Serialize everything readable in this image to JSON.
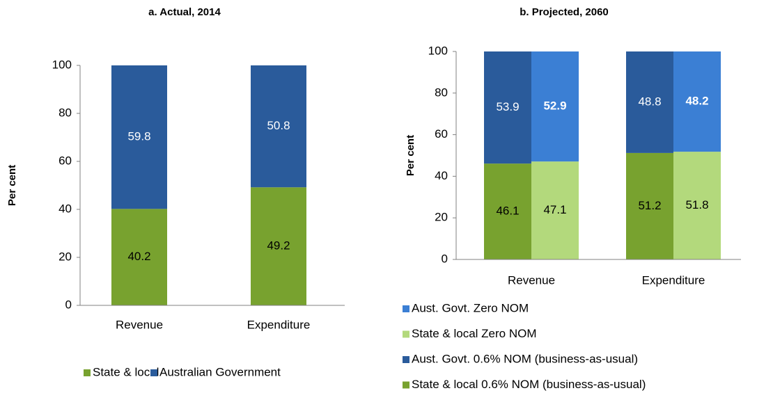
{
  "chart_data": [
    {
      "type": "stacked_bar",
      "title": "a. Actual, 2014",
      "y_label": "Per cent",
      "categories": [
        "Revenue",
        "Expenditure"
      ],
      "series": [
        {
          "name": "State & local",
          "color": "#78a22f",
          "label_color": "#000000",
          "stack": 0,
          "values": [
            40.2,
            49.2
          ]
        },
        {
          "name": "Australian Government",
          "color": "#2a5b9b",
          "label_color": "#ffffff",
          "stack": 0,
          "values": [
            59.8,
            50.8
          ]
        }
      ],
      "ylim": [
        0,
        100
      ],
      "yticks": [
        0,
        20,
        40,
        60,
        80,
        100
      ],
      "legend": "bottom-horizontal"
    },
    {
      "type": "stacked_bar",
      "title": "b. Projected, 2060",
      "y_label": "Per  cent",
      "categories": [
        "Revenue",
        "Expenditure"
      ],
      "series": [
        {
          "name": "State & local 0.6% NOM (business-as-usual)",
          "color": "#78a22f",
          "label_color": "#000000",
          "stack": 0,
          "values": [
            46.1,
            51.2
          ]
        },
        {
          "name": "Aust. Govt. 0.6% NOM (business-as-usual)",
          "color": "#2a5b9b",
          "label_color": "#ffffff",
          "stack": 0,
          "values": [
            53.9,
            48.8
          ]
        },
        {
          "name": "State & local Zero NOM",
          "color": "#b3d97c",
          "label_color": "#000000",
          "stack": 1,
          "values": [
            47.1,
            51.8
          ]
        },
        {
          "name": "Aust. Govt. Zero NOM",
          "color": "#3b7fd4",
          "label_color": "#ffffff",
          "stack": 1,
          "bold": true,
          "values": [
            52.9,
            48.2
          ]
        }
      ],
      "ylim": [
        0,
        100
      ],
      "yticks": [
        0,
        20,
        40,
        60,
        80,
        100
      ],
      "legend": "bottom-vertical",
      "legend_order": "reverse"
    }
  ]
}
